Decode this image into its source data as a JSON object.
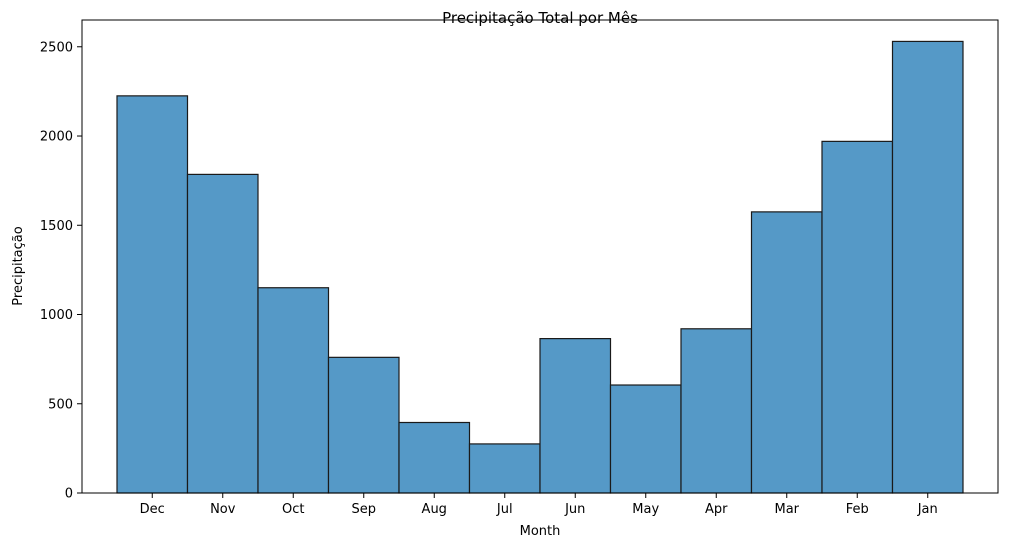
{
  "chart_data": {
    "type": "bar",
    "title": "Precipitação Total por Mês",
    "xlabel": "Month",
    "ylabel": "Precipitação",
    "categories": [
      "Dec",
      "Nov",
      "Oct",
      "Sep",
      "Aug",
      "Jul",
      "Jun",
      "May",
      "Apr",
      "Mar",
      "Feb",
      "Jan"
    ],
    "values": [
      2225,
      1785,
      1150,
      760,
      395,
      275,
      865,
      605,
      920,
      1575,
      1970,
      2530
    ],
    "ylim": [
      0,
      2650
    ],
    "yticks": [
      0,
      500,
      1000,
      1500,
      2000,
      2500
    ],
    "bar_color": "#5599c7",
    "edge_color": "#1a1a1a",
    "grid": false,
    "legend": "none"
  }
}
